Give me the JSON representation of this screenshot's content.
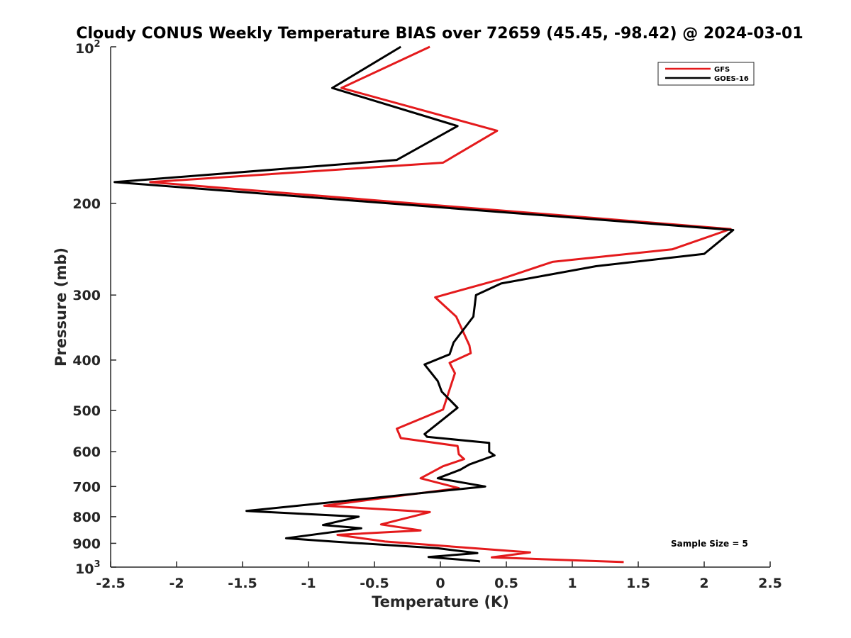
{
  "chart_data": {
    "type": "line",
    "title": "Cloudy CONUS Weekly Temperature BIAS over 72659 (45.45, -98.42) @ 2024-03-01",
    "xlabel": "Temperature (K)",
    "ylabel": "Pressure (mb)",
    "xlim": [
      -2.5,
      2.5
    ],
    "ylim": [
      100,
      1000
    ],
    "y_scale": "log",
    "y_reversed": true,
    "grid": false,
    "legend_position": "top-right",
    "x_ticks": [
      "-2.5",
      "-2",
      "-1.5",
      "-1",
      "-0.5",
      "0",
      "0.5",
      "1",
      "1.5",
      "2",
      "2.5"
    ],
    "y_ticks": [
      {
        "value": 100,
        "base": "10",
        "exp": "2"
      },
      {
        "value": 200,
        "label": "200"
      },
      {
        "value": 300,
        "label": "300"
      },
      {
        "value": 400,
        "label": "400"
      },
      {
        "value": 500,
        "label": "500"
      },
      {
        "value": 600,
        "label": "600"
      },
      {
        "value": 700,
        "label": "700"
      },
      {
        "value": 800,
        "label": "800"
      },
      {
        "value": 900,
        "label": "900"
      },
      {
        "value": 1000,
        "base": "10",
        "exp": "3"
      }
    ],
    "annotation": "Sample Size = 5",
    "series": [
      {
        "name": "GFS",
        "color": "#e41a1c",
        "points": [
          [
            -0.08,
            100
          ],
          [
            -0.75,
            120
          ],
          [
            0.43,
            145
          ],
          [
            0.02,
            167
          ],
          [
            -2.2,
            182
          ],
          [
            2.2,
            224
          ],
          [
            1.76,
            245
          ],
          [
            0.85,
            259
          ],
          [
            0.45,
            280
          ],
          [
            -0.04,
            303
          ],
          [
            0.12,
            330
          ],
          [
            0.22,
            375
          ],
          [
            0.23,
            388
          ],
          [
            0.07,
            405
          ],
          [
            0.11,
            424
          ],
          [
            0.02,
            498
          ],
          [
            -0.33,
            542
          ],
          [
            -0.3,
            565
          ],
          [
            0.13,
            585
          ],
          [
            0.14,
            607
          ],
          [
            0.18,
            620
          ],
          [
            0.02,
            640
          ],
          [
            -0.15,
            675
          ],
          [
            0.14,
            705
          ],
          [
            -0.88,
            762
          ],
          [
            -0.08,
            784
          ],
          [
            -0.45,
            828
          ],
          [
            -0.15,
            850
          ],
          [
            -0.78,
            867
          ],
          [
            -0.42,
            893
          ],
          [
            0.68,
            937
          ],
          [
            0.39,
            958
          ],
          [
            1.39,
            978
          ]
        ]
      },
      {
        "name": "GOES-16",
        "color": "#000000",
        "points": [
          [
            -0.3,
            100
          ],
          [
            -0.82,
            120
          ],
          [
            0.13,
            142
          ],
          [
            -0.33,
            165
          ],
          [
            -2.47,
            182
          ],
          [
            2.22,
            225
          ],
          [
            2.0,
            250
          ],
          [
            1.18,
            264
          ],
          [
            0.46,
            285
          ],
          [
            0.27,
            300
          ],
          [
            0.25,
            330
          ],
          [
            0.1,
            370
          ],
          [
            0.07,
            390
          ],
          [
            -0.12,
            408
          ],
          [
            -0.02,
            439
          ],
          [
            0.01,
            460
          ],
          [
            0.13,
            494
          ],
          [
            -0.12,
            555
          ],
          [
            -0.1,
            562
          ],
          [
            0.37,
            577
          ],
          [
            0.37,
            600
          ],
          [
            0.41,
            610
          ],
          [
            0.22,
            635
          ],
          [
            0.15,
            650
          ],
          [
            -0.02,
            675
          ],
          [
            0.34,
            700
          ],
          [
            -1.47,
            780
          ],
          [
            -0.62,
            800
          ],
          [
            -0.89,
            830
          ],
          [
            -0.6,
            842
          ],
          [
            -1.17,
            880
          ],
          [
            -0.82,
            893
          ],
          [
            -0.02,
            920
          ],
          [
            0.28,
            940
          ],
          [
            -0.09,
            956
          ],
          [
            0.29,
            974
          ],
          [
            0.3,
            976
          ]
        ]
      }
    ]
  }
}
